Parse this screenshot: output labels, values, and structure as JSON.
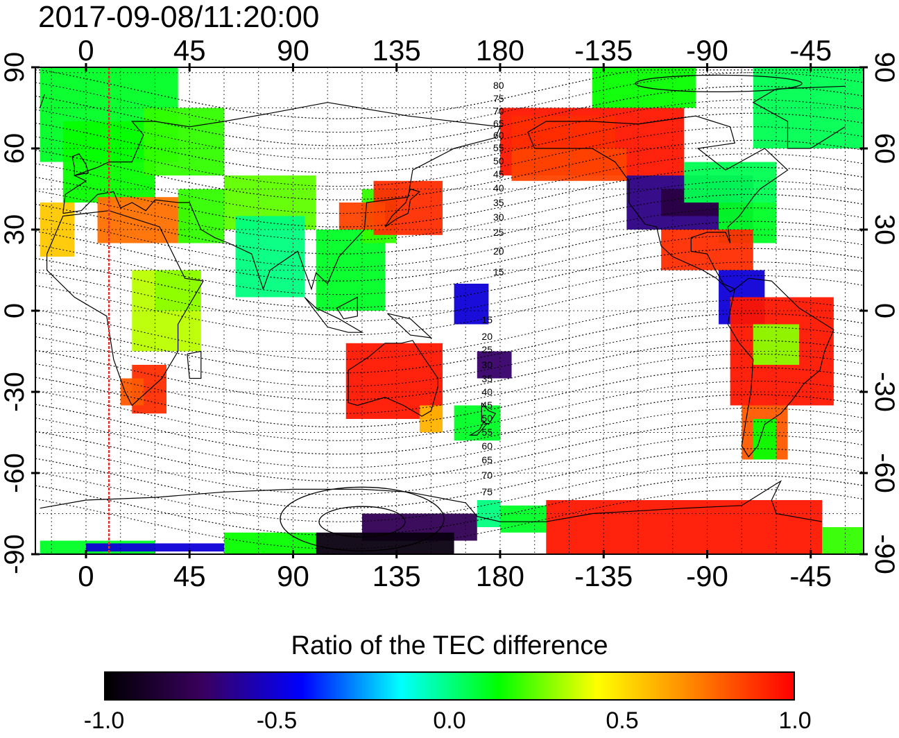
{
  "header": {
    "timestamp": "2017-09-08/11:20:00"
  },
  "map": {
    "projection": "equirectangular",
    "central_longitude": 0,
    "lon_labels_top": [
      "0",
      "45",
      "90",
      "135",
      "180",
      "-135",
      "-90",
      "-45"
    ],
    "lon_labels_bottom": [
      "0",
      "45",
      "90",
      "135",
      "180",
      "-135",
      "-90",
      "-45"
    ],
    "lat_labels_left": [
      "90",
      "60",
      "30",
      "0",
      "-30",
      "-60",
      "-90"
    ],
    "lat_labels_right": [
      "90",
      "60",
      "30",
      "0",
      "-30",
      "-60",
      "-90"
    ],
    "lon_range": [
      -22,
      338
    ],
    "lat_range": [
      -90,
      90
    ],
    "grid": "dotted, every 15 degrees",
    "marker_line_longitude": 10,
    "marker_line_color": "#e03030",
    "contour_labels_north": [
      "80",
      "75",
      "70",
      "65",
      "60",
      "55",
      "50",
      "45",
      "40",
      "35",
      "30",
      "25",
      "20",
      "15"
    ],
    "contour_labels_south": [
      "15",
      "20",
      "25",
      "30",
      "35",
      "40",
      "45",
      "50",
      "55",
      "60",
      "65",
      "70",
      "75"
    ]
  },
  "colorbar": {
    "title": "Ratio of the TEC difference",
    "tick_labels": [
      "-1.0",
      "-0.5",
      "0.0",
      "0.5",
      "1.0"
    ],
    "range": [
      -1.0,
      1.0
    ],
    "colormap_stops": [
      "#000000",
      "#3a0060",
      "#0000ff",
      "#00ffff",
      "#00ff00",
      "#ffff00",
      "#ff8000",
      "#ff0000"
    ]
  }
}
